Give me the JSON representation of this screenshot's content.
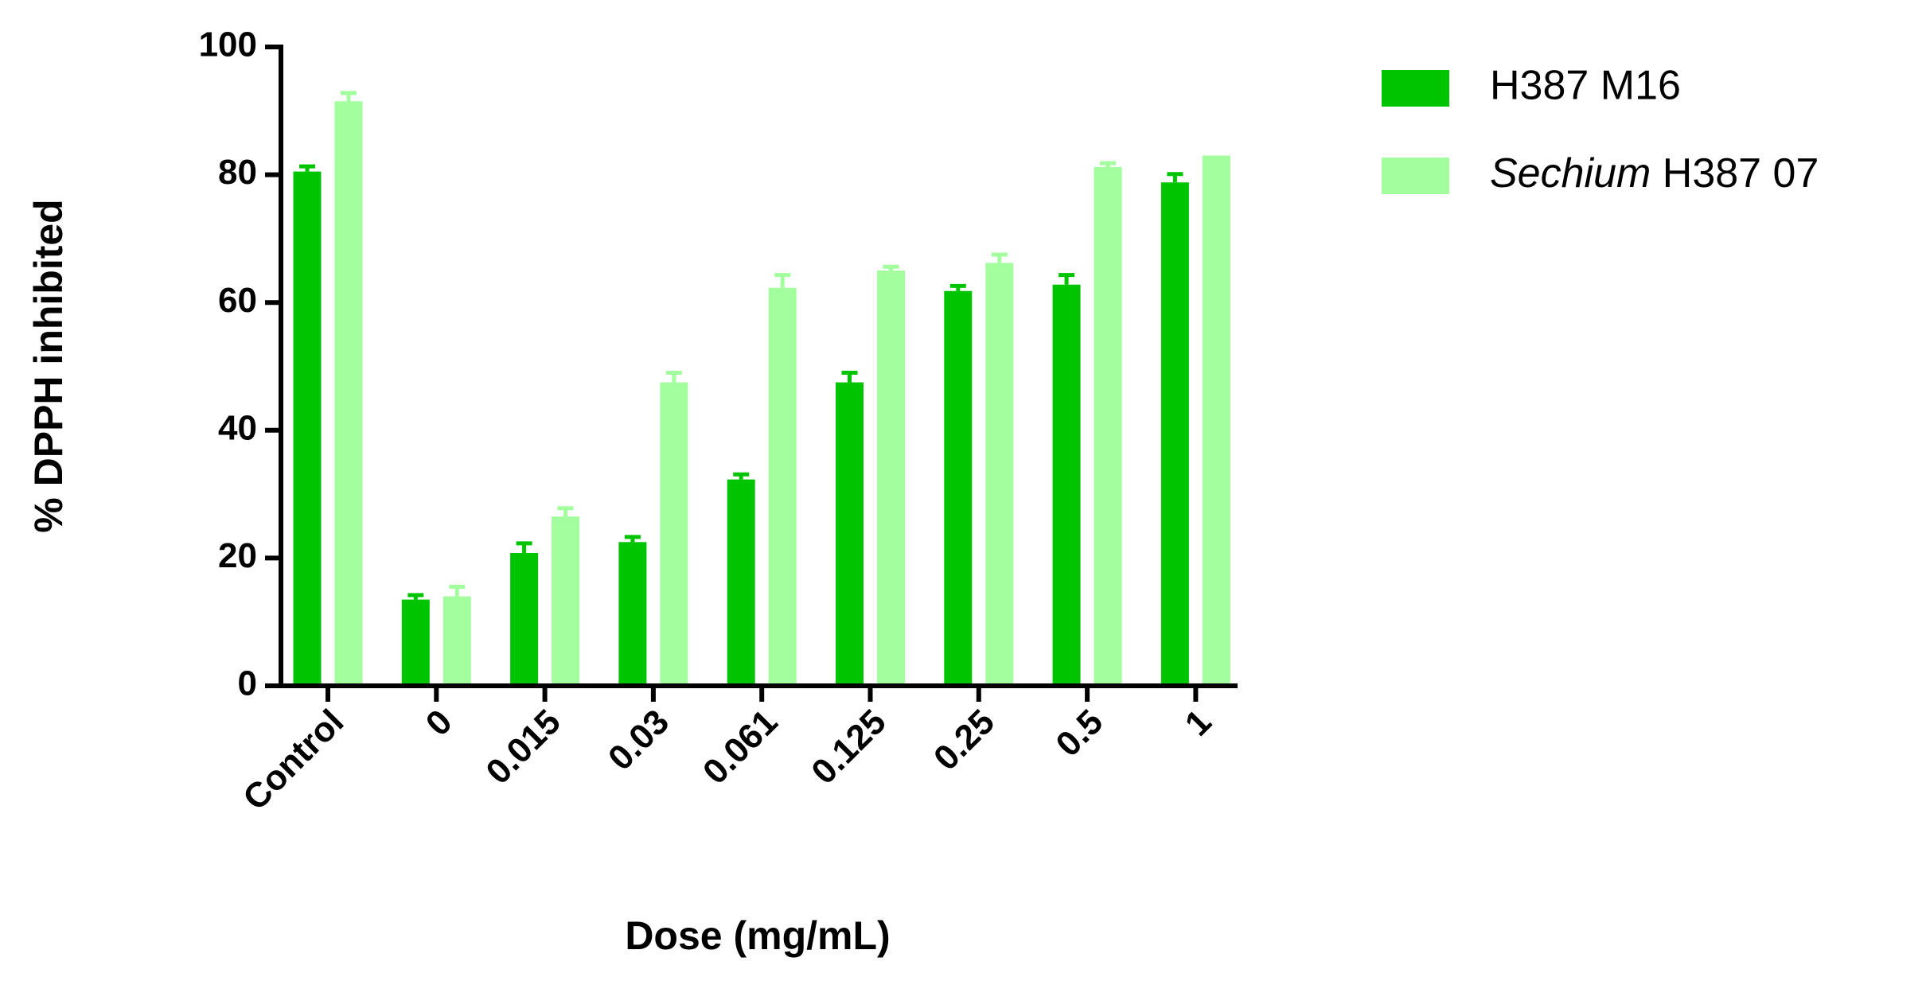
{
  "chart_data": {
    "type": "bar",
    "x_label": "Dose (mg/mL)",
    "y_label": "% DPPH inhibited",
    "categories": [
      "Control",
      "0",
      "0.015",
      "0.03",
      "0.061",
      "0.125",
      "0.25",
      "0.5",
      "1"
    ],
    "series": [
      {
        "name": "H387 M16",
        "color": "#00c400",
        "values": [
          80.5,
          13.5,
          20.8,
          22.5,
          32.3,
          47.5,
          61.8,
          62.8,
          78.8
        ],
        "errors": [
          0.8,
          0.7,
          1.5,
          0.8,
          0.8,
          1.5,
          0.8,
          1.5,
          1.3
        ]
      },
      {
        "name": "Sechium H387 07",
        "color": "#a3ff9d",
        "values": [
          91.5,
          14,
          26.5,
          47.5,
          62.3,
          65,
          66.2,
          81.2,
          83
        ],
        "errors": [
          1.3,
          1.5,
          1.3,
          1.5,
          2,
          0.6,
          1.3,
          0.6,
          null
        ]
      }
    ],
    "ylim": [
      0,
      100
    ],
    "yticks": [
      0,
      20,
      40,
      60,
      80,
      100
    ],
    "grid": false
  }
}
